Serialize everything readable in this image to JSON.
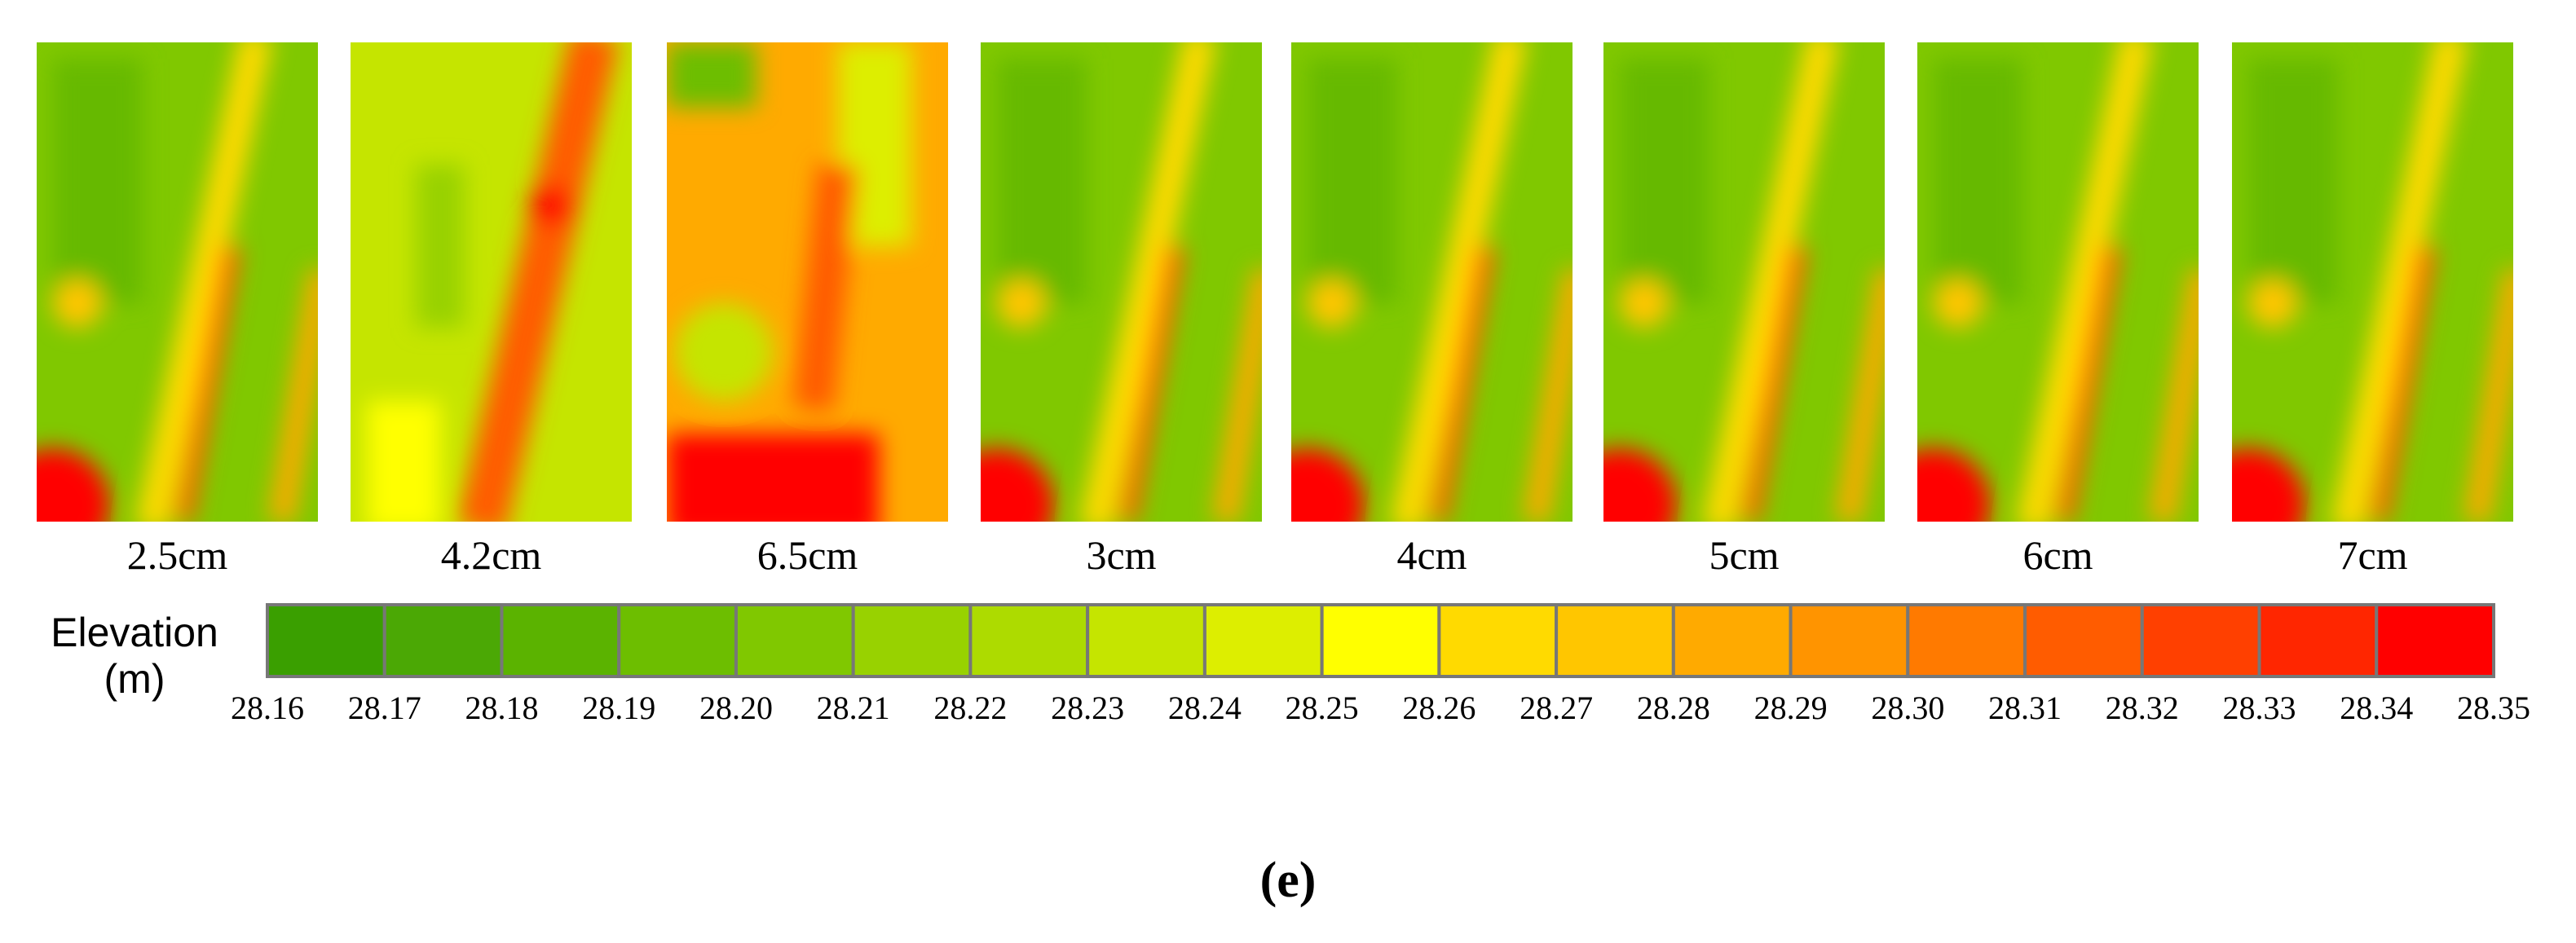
{
  "panels": [
    {
      "label": "2.5cm"
    },
    {
      "label": "4.2cm"
    },
    {
      "label": "6.5cm"
    },
    {
      "label": "3cm"
    },
    {
      "label": "4cm"
    },
    {
      "label": "5cm"
    },
    {
      "label": "6cm"
    },
    {
      "label": "7cm"
    }
  ],
  "legend": {
    "title_lines": [
      "Elevation",
      "(m)"
    ],
    "colors": [
      "#3a9f00",
      "#4ba805",
      "#5bb300",
      "#6dbe00",
      "#80c800",
      "#98d200",
      "#addb00",
      "#c5e500",
      "#ddee00",
      "#ffff00",
      "#ffda00",
      "#ffc600",
      "#ffaa00",
      "#ff9400",
      "#ff7a00",
      "#ff5c00",
      "#ff4000",
      "#ff2600",
      "#ff0000"
    ],
    "ticks": [
      "28.16",
      "28.17",
      "28.18",
      "28.19",
      "28.20",
      "28.21",
      "28.22",
      "28.23",
      "28.24",
      "28.25",
      "28.26",
      "28.27",
      "28.28",
      "28.29",
      "28.30",
      "28.31",
      "28.32",
      "28.33",
      "28.34",
      "28.35"
    ]
  },
  "caption": "(e)"
}
